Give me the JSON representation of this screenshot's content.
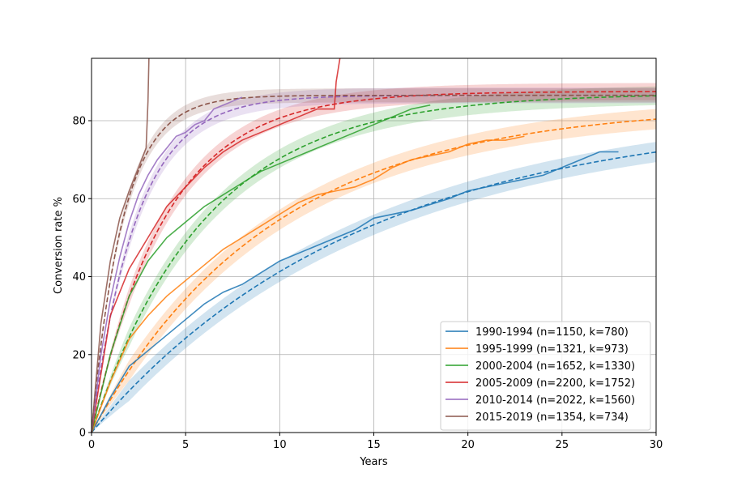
{
  "chart_data": {
    "type": "line",
    "xlabel": "Years",
    "ylabel": "Conversion rate %",
    "xlim": [
      0,
      30
    ],
    "ylim": [
      0,
      96
    ],
    "xticks": [
      0,
      5,
      10,
      15,
      20,
      25,
      30
    ],
    "yticks": [
      0,
      20,
      40,
      60,
      80
    ],
    "grid": true,
    "legend_position": "bottom-right",
    "series": [
      {
        "name": "1990-1994 (n=1150, k=780)",
        "color": "#1f77b4",
        "fit": {
          "plateau": 82,
          "rate": 0.07,
          "band": 2.6
        },
        "observed": {
          "x": [
            0,
            1,
            2,
            3,
            4,
            5,
            6,
            7,
            8,
            9,
            10,
            12,
            14,
            15,
            17,
            19,
            20,
            22,
            24,
            25,
            26,
            27,
            28
          ],
          "y": [
            0,
            9,
            17,
            21,
            25,
            29,
            33,
            36,
            38,
            41,
            44,
            48,
            52,
            55,
            57,
            60,
            62,
            64,
            66,
            68,
            70,
            72,
            72
          ]
        }
      },
      {
        "name": "1995-1999 (n=1321, k=973)",
        "color": "#ff7f0e",
        "fit": {
          "plateau": 84,
          "rate": 0.105,
          "band": 2.6
        },
        "observed": {
          "x": [
            0,
            1,
            2,
            3,
            4,
            5,
            6,
            7,
            8,
            9,
            10,
            11,
            12,
            13,
            14,
            15,
            16,
            17,
            18,
            19,
            20,
            21,
            22,
            23
          ],
          "y": [
            0,
            13,
            24,
            30,
            35,
            39,
            43,
            47,
            50,
            53,
            56,
            59,
            61,
            62,
            63,
            65,
            68,
            70,
            71,
            72,
            74,
            75,
            75,
            76
          ]
        }
      },
      {
        "name": "2000-2004 (n=1652, k=1330)",
        "color": "#2ca02c",
        "fit": {
          "plateau": 87,
          "rate": 0.165,
          "band": 2.4
        },
        "observed": {
          "x": [
            0,
            1,
            2,
            3,
            4,
            5,
            6,
            7,
            8,
            9,
            10,
            11,
            12,
            13,
            14,
            15,
            16,
            17,
            18
          ],
          "y": [
            0,
            20,
            35,
            44,
            50,
            54,
            58,
            61,
            64,
            67,
            69,
            71,
            73,
            75,
            77,
            79,
            81,
            83,
            84
          ]
        }
      },
      {
        "name": "2005-2009 (n=2200, k=1752)",
        "color": "#d62728",
        "fit": {
          "plateau": 87.5,
          "rate": 0.255,
          "band": 2.2
        },
        "observed": {
          "x": [
            0,
            1,
            2,
            3,
            4,
            5,
            6,
            7,
            8,
            9,
            10,
            11,
            12,
            12.9,
            13.0,
            13.2
          ],
          "y": [
            0,
            30,
            42,
            50,
            58,
            63,
            68,
            72,
            75,
            77,
            79,
            81,
            83,
            83,
            90,
            96
          ]
        }
      },
      {
        "name": "2010-2014 (n=2022, k=1560)",
        "color": "#9467bd",
        "fit": {
          "plateau": 86.5,
          "rate": 0.42,
          "band": 2.0
        },
        "observed": {
          "x": [
            0,
            0.5,
            1,
            1.5,
            2,
            2.5,
            3,
            3.5,
            4,
            4.5,
            5,
            5.5,
            6,
            6.5,
            7,
            7.5,
            8
          ],
          "y": [
            0,
            20,
            34,
            45,
            54,
            61,
            66,
            70,
            73,
            76,
            77,
            79,
            80,
            83,
            84,
            85,
            86
          ]
        }
      },
      {
        "name": "2015-2019 (n=1354, k=734)",
        "color": "#8c564b",
        "fit": {
          "plateau": 86.5,
          "rate": 0.6,
          "band": 1.8
        },
        "observed": {
          "x": [
            0,
            0.5,
            1,
            1.5,
            2,
            2.5,
            2.9,
            3.0,
            3.05
          ],
          "y": [
            0,
            28,
            44,
            55,
            62,
            68,
            73,
            85,
            96
          ]
        }
      }
    ]
  }
}
